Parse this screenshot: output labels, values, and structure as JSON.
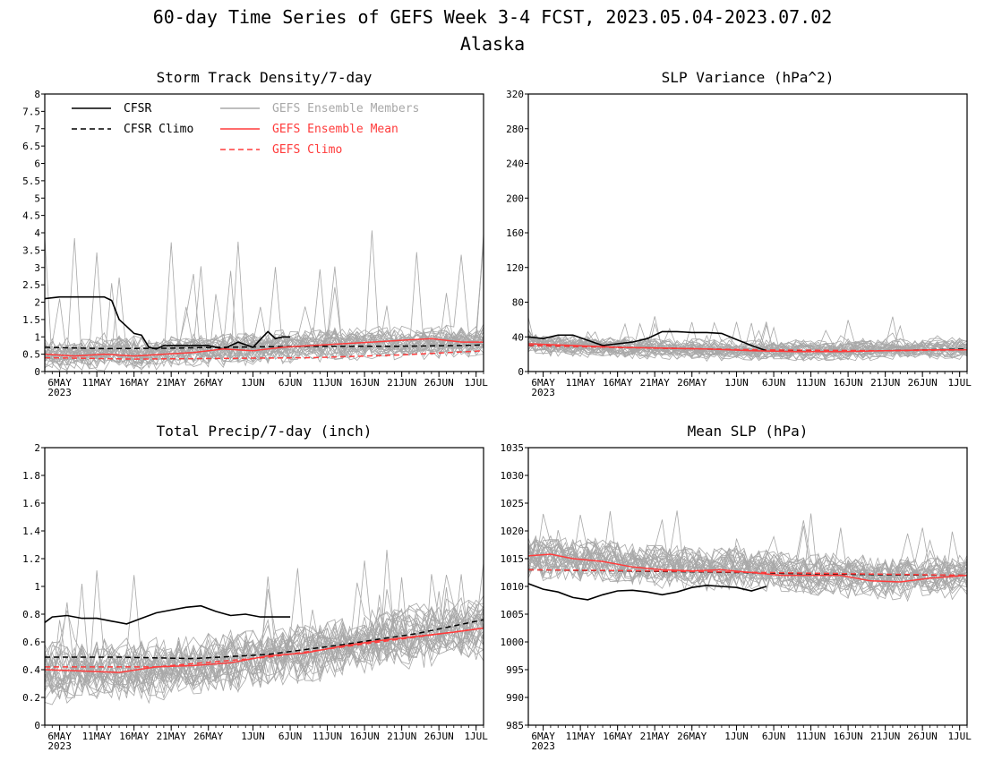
{
  "figure": {
    "title_line1": "60-day Time Series of GEFS Week 3-4 FCST, 2023.05.04-2023.07.02",
    "title_line2": "Alaska"
  },
  "legend": {
    "items": [
      {
        "label": "CFSR",
        "color": "#000000",
        "dash": "solid"
      },
      {
        "label": "CFSR Climo",
        "color": "#000000",
        "dash": "dashed"
      },
      {
        "label": "GEFS Ensemble Members",
        "color": "#a8a8a8",
        "dash": "solid"
      },
      {
        "label": "GEFS Ensemble Mean",
        "color": "#ff3b3b",
        "dash": "solid"
      },
      {
        "label": "GEFS Climo",
        "color": "#ff3b3b",
        "dash": "dashed"
      }
    ]
  },
  "colors": {
    "cfsr": "#000000",
    "members": "#a8a8a8",
    "mean": "#ff3b3b",
    "gefs_climo": "#ff3b3b"
  },
  "chart_data": [
    {
      "type": "line",
      "title": "Storm Track Density/7-day",
      "ylim": [
        0,
        8
      ],
      "yticks": [
        0,
        0.5,
        1,
        1.5,
        2,
        2.5,
        3,
        3.5,
        4,
        4.5,
        5,
        5.5,
        6,
        6.5,
        7,
        7.5,
        8
      ],
      "ytick_labels": [
        "0",
        "0.5",
        "1",
        "1.5",
        "2",
        "2.5",
        "3",
        "3.5",
        "4",
        "4.5",
        "5",
        "5.5",
        "6",
        "6.5",
        "7",
        "7.5",
        "8"
      ],
      "xlim": [
        "2023-05-04",
        "2023-07-02"
      ],
      "xticks": [
        "2023-05-06",
        "2023-05-11",
        "2023-05-16",
        "2023-05-21",
        "2023-05-26",
        "2023-06-01",
        "2023-06-06",
        "2023-06-11",
        "2023-06-16",
        "2023-06-21",
        "2023-06-26",
        "2023-07-01"
      ],
      "xtick_labels": [
        "6MAY",
        "11MAY",
        "16MAY",
        "21MAY",
        "26MAY",
        "1JUN",
        "6JUN",
        "11JUN",
        "16JUN",
        "21JUN",
        "26JUN",
        "1JUL"
      ],
      "xtick_sublabel": "2023",
      "show_legend": true,
      "series": [
        {
          "name": "CFSR",
          "style": "solid",
          "x": [
            "2023-05-04",
            "2023-05-06",
            "2023-05-08",
            "2023-05-10",
            "2023-05-12",
            "2023-05-13",
            "2023-05-14",
            "2023-05-15",
            "2023-05-16",
            "2023-05-17",
            "2023-05-18",
            "2023-05-19",
            "2023-05-20",
            "2023-05-22",
            "2023-05-24",
            "2023-05-26",
            "2023-05-28",
            "2023-05-30",
            "2023-06-01",
            "2023-06-03",
            "2023-06-04",
            "2023-06-05",
            "2023-06-06"
          ],
          "y": [
            2.1,
            2.15,
            2.15,
            2.15,
            2.15,
            2.05,
            1.5,
            1.3,
            1.1,
            1.05,
            0.7,
            0.65,
            0.75,
            0.75,
            0.75,
            0.75,
            0.65,
            0.85,
            0.7,
            1.15,
            0.95,
            1.0,
            1.0
          ]
        },
        {
          "name": "CFSR Climo",
          "style": "dashed",
          "x": [
            "2023-05-04",
            "2023-05-12",
            "2023-05-20",
            "2023-05-28",
            "2023-06-05",
            "2023-06-13",
            "2023-06-21",
            "2023-06-29",
            "2023-07-02"
          ],
          "y": [
            0.7,
            0.66,
            0.67,
            0.7,
            0.72,
            0.73,
            0.73,
            0.75,
            0.77
          ]
        },
        {
          "name": "GEFS Ensemble Mean",
          "style": "solid",
          "x": [
            "2023-05-04",
            "2023-05-08",
            "2023-05-12",
            "2023-05-16",
            "2023-05-20",
            "2023-05-24",
            "2023-05-28",
            "2023-06-01",
            "2023-06-05",
            "2023-06-09",
            "2023-06-13",
            "2023-06-17",
            "2023-06-21",
            "2023-06-25",
            "2023-06-29",
            "2023-07-02"
          ],
          "y": [
            0.5,
            0.45,
            0.5,
            0.45,
            0.5,
            0.55,
            0.65,
            0.6,
            0.7,
            0.75,
            0.8,
            0.85,
            0.9,
            0.95,
            0.85,
            0.85
          ]
        },
        {
          "name": "GEFS Climo",
          "style": "dashed",
          "x": [
            "2023-05-04",
            "2023-05-16",
            "2023-05-28",
            "2023-06-09",
            "2023-06-21",
            "2023-07-02"
          ],
          "y": [
            0.4,
            0.36,
            0.38,
            0.4,
            0.48,
            0.6
          ]
        }
      ],
      "ensemble": {
        "center": [
          0.5,
          0.5,
          0.55,
          0.55,
          0.6,
          0.65,
          0.7,
          0.75,
          0.8,
          0.85,
          0.85,
          0.85,
          0.9
        ],
        "spread": 0.55,
        "max_y": 4.1
      }
    },
    {
      "type": "line",
      "title": "SLP Variance (hPa^2)",
      "ylim": [
        0,
        320
      ],
      "yticks": [
        0,
        40,
        80,
        120,
        160,
        200,
        240,
        280,
        320
      ],
      "ytick_labels": [
        "0",
        "40",
        "80",
        "120",
        "160",
        "200",
        "240",
        "280",
        "320"
      ],
      "xlim": [
        "2023-05-04",
        "2023-07-02"
      ],
      "xticks": [
        "2023-05-06",
        "2023-05-11",
        "2023-05-16",
        "2023-05-21",
        "2023-05-26",
        "2023-06-01",
        "2023-06-06",
        "2023-06-11",
        "2023-06-16",
        "2023-06-21",
        "2023-06-26",
        "2023-07-01"
      ],
      "xtick_labels": [
        "6MAY",
        "11MAY",
        "16MAY",
        "21MAY",
        "26MAY",
        "1JUN",
        "6JUN",
        "11JUN",
        "16JUN",
        "21JUN",
        "26JUN",
        "1JUL"
      ],
      "xtick_sublabel": "2023",
      "show_legend": false,
      "series": [
        {
          "name": "CFSR",
          "style": "solid",
          "x": [
            "2023-05-04",
            "2023-05-06",
            "2023-05-08",
            "2023-05-10",
            "2023-05-12",
            "2023-05-14",
            "2023-05-16",
            "2023-05-18",
            "2023-05-20",
            "2023-05-22",
            "2023-05-24",
            "2023-05-26",
            "2023-05-28",
            "2023-05-30",
            "2023-06-01",
            "2023-06-03",
            "2023-06-05"
          ],
          "y": [
            40,
            38,
            42,
            42,
            36,
            30,
            32,
            34,
            38,
            46,
            46,
            45,
            45,
            44,
            37,
            30,
            24
          ]
        },
        {
          "name": "CFSR Climo",
          "style": "dashed",
          "x": [
            "2023-05-04",
            "2023-05-16",
            "2023-05-28",
            "2023-06-09",
            "2023-06-21",
            "2023-07-02"
          ],
          "y": [
            30,
            28,
            26,
            24,
            24,
            26
          ]
        },
        {
          "name": "GEFS Ensemble Mean",
          "style": "solid",
          "x": [
            "2023-05-04",
            "2023-05-10",
            "2023-05-16",
            "2023-05-22",
            "2023-05-28",
            "2023-06-03",
            "2023-06-09",
            "2023-06-15",
            "2023-06-21",
            "2023-06-27",
            "2023-07-02"
          ],
          "y": [
            32,
            30,
            28,
            27,
            26,
            24,
            23,
            23,
            24,
            25,
            25
          ]
        },
        {
          "name": "GEFS Climo",
          "style": "dashed",
          "x": [
            "2023-05-04",
            "2023-05-20",
            "2023-06-05",
            "2023-06-21",
            "2023-07-02"
          ],
          "y": [
            30,
            27,
            25,
            24,
            25
          ]
        }
      ],
      "ensemble": {
        "center": [
          32,
          30,
          28,
          27,
          26,
          25,
          24,
          24,
          24,
          25,
          26,
          26,
          27
        ],
        "spread": 14,
        "max_y": 64
      }
    },
    {
      "type": "line",
      "title": "Total Precip/7-day (inch)",
      "ylim": [
        0,
        2
      ],
      "yticks": [
        0,
        0.2,
        0.4,
        0.6,
        0.8,
        1,
        1.2,
        1.4,
        1.6,
        1.8,
        2
      ],
      "ytick_labels": [
        "0",
        "0.2",
        "0.4",
        "0.6",
        "0.8",
        "1",
        "1.2",
        "1.4",
        "1.6",
        "1.8",
        "2"
      ],
      "xlim": [
        "2023-05-04",
        "2023-07-02"
      ],
      "xticks": [
        "2023-05-06",
        "2023-05-11",
        "2023-05-16",
        "2023-05-21",
        "2023-05-26",
        "2023-06-01",
        "2023-06-06",
        "2023-06-11",
        "2023-06-16",
        "2023-06-21",
        "2023-06-26",
        "2023-07-01"
      ],
      "xtick_labels": [
        "6MAY",
        "11MAY",
        "16MAY",
        "21MAY",
        "26MAY",
        "1JUN",
        "6JUN",
        "11JUN",
        "16JUN",
        "21JUN",
        "26JUN",
        "1JUL"
      ],
      "xtick_sublabel": "2023",
      "show_legend": false,
      "series": [
        {
          "name": "CFSR",
          "style": "solid",
          "x": [
            "2023-05-04",
            "2023-05-05",
            "2023-05-07",
            "2023-05-09",
            "2023-05-11",
            "2023-05-13",
            "2023-05-15",
            "2023-05-17",
            "2023-05-19",
            "2023-05-21",
            "2023-05-23",
            "2023-05-25",
            "2023-05-27",
            "2023-05-29",
            "2023-05-31",
            "2023-06-02",
            "2023-06-04",
            "2023-06-06"
          ],
          "y": [
            0.74,
            0.78,
            0.79,
            0.77,
            0.77,
            0.75,
            0.73,
            0.77,
            0.81,
            0.83,
            0.85,
            0.86,
            0.82,
            0.79,
            0.8,
            0.78,
            0.78,
            0.78
          ]
        },
        {
          "name": "CFSR Climo",
          "style": "dashed",
          "x": [
            "2023-05-04",
            "2023-05-14",
            "2023-05-24",
            "2023-06-03",
            "2023-06-13",
            "2023-06-23",
            "2023-07-02"
          ],
          "y": [
            0.49,
            0.49,
            0.48,
            0.51,
            0.58,
            0.66,
            0.76
          ]
        },
        {
          "name": "GEFS Ensemble Mean",
          "style": "solid",
          "x": [
            "2023-05-04",
            "2023-05-09",
            "2023-05-14",
            "2023-05-19",
            "2023-05-24",
            "2023-05-29",
            "2023-06-03",
            "2023-06-08",
            "2023-06-13",
            "2023-06-18",
            "2023-06-23",
            "2023-06-28",
            "2023-07-02"
          ],
          "y": [
            0.4,
            0.39,
            0.38,
            0.42,
            0.43,
            0.45,
            0.5,
            0.52,
            0.57,
            0.61,
            0.64,
            0.67,
            0.7
          ]
        },
        {
          "name": "GEFS Climo",
          "style": "dashed",
          "x": [
            "2023-05-04",
            "2023-05-19",
            "2023-06-03",
            "2023-06-18",
            "2023-07-02"
          ],
          "y": [
            0.42,
            0.42,
            0.49,
            0.6,
            0.7
          ]
        }
      ],
      "ensemble": {
        "center": [
          0.38,
          0.38,
          0.38,
          0.4,
          0.42,
          0.44,
          0.48,
          0.52,
          0.56,
          0.6,
          0.64,
          0.67,
          0.7
        ],
        "spread": 0.26,
        "max_y": 1.27
      }
    },
    {
      "type": "line",
      "title": "Mean SLP (hPa)",
      "ylim": [
        985,
        1035
      ],
      "yticks": [
        985,
        990,
        995,
        1000,
        1005,
        1010,
        1015,
        1020,
        1025,
        1030,
        1035
      ],
      "ytick_labels": [
        "985",
        "990",
        "995",
        "1000",
        "1005",
        "1010",
        "1015",
        "1020",
        "1025",
        "1030",
        "1035"
      ],
      "xlim": [
        "2023-05-04",
        "2023-07-02"
      ],
      "xticks": [
        "2023-05-06",
        "2023-05-11",
        "2023-05-16",
        "2023-05-21",
        "2023-05-26",
        "2023-06-01",
        "2023-06-06",
        "2023-06-11",
        "2023-06-16",
        "2023-06-21",
        "2023-06-26",
        "2023-07-01"
      ],
      "xtick_labels": [
        "6MAY",
        "11MAY",
        "16MAY",
        "21MAY",
        "26MAY",
        "1JUN",
        "6JUN",
        "11JUN",
        "16JUN",
        "21JUN",
        "26JUN",
        "1JUL"
      ],
      "xtick_sublabel": "2023",
      "show_legend": false,
      "series": [
        {
          "name": "CFSR",
          "style": "solid",
          "x": [
            "2023-05-04",
            "2023-05-06",
            "2023-05-08",
            "2023-05-10",
            "2023-05-12",
            "2023-05-14",
            "2023-05-16",
            "2023-05-18",
            "2023-05-20",
            "2023-05-22",
            "2023-05-24",
            "2023-05-26",
            "2023-05-28",
            "2023-05-30",
            "2023-06-01",
            "2023-06-03",
            "2023-06-05"
          ],
          "y": [
            1010.5,
            1009.5,
            1009.0,
            1008.0,
            1007.6,
            1008.5,
            1009.2,
            1009.3,
            1009.0,
            1008.5,
            1009.0,
            1009.8,
            1010.2,
            1010.0,
            1009.8,
            1009.2,
            1010.0
          ]
        },
        {
          "name": "CFSR Climo",
          "style": "dashed",
          "x": [
            "2023-05-04",
            "2023-05-16",
            "2023-05-28",
            "2023-06-09",
            "2023-06-21",
            "2023-07-02"
          ],
          "y": [
            1013.0,
            1012.8,
            1012.6,
            1012.3,
            1012.1,
            1012.0
          ]
        },
        {
          "name": "GEFS Ensemble Mean",
          "style": "solid",
          "x": [
            "2023-05-04",
            "2023-05-07",
            "2023-05-10",
            "2023-05-14",
            "2023-05-18",
            "2023-05-22",
            "2023-05-26",
            "2023-05-30",
            "2023-06-03",
            "2023-06-07",
            "2023-06-11",
            "2023-06-15",
            "2023-06-19",
            "2023-06-23",
            "2023-06-27",
            "2023-07-02"
          ],
          "y": [
            1015.5,
            1015.8,
            1015.0,
            1014.5,
            1013.5,
            1013.0,
            1012.8,
            1013.0,
            1012.5,
            1012.0,
            1012.0,
            1012.0,
            1011.0,
            1010.8,
            1011.5,
            1012.0
          ]
        },
        {
          "name": "GEFS Climo",
          "style": "dashed",
          "x": [
            "2023-05-04",
            "2023-05-20",
            "2023-06-05",
            "2023-06-21",
            "2023-07-02"
          ],
          "y": [
            1013.0,
            1012.8,
            1012.5,
            1012.2,
            1012.0
          ]
        }
      ],
      "ensemble": {
        "center": [
          1015.0,
          1015.0,
          1014.5,
          1014.0,
          1013.5,
          1013.0,
          1013.0,
          1012.5,
          1012.0,
          1012.0,
          1011.5,
          1011.5,
          1011.8
        ],
        "spread": 4.5,
        "max_y": 1024
      }
    }
  ]
}
